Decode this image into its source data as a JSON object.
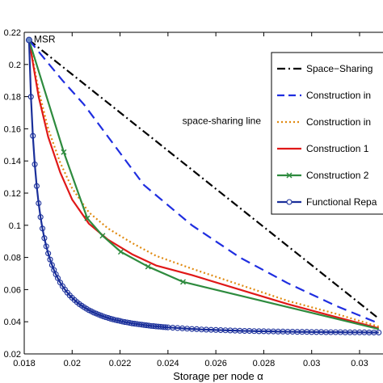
{
  "chart_data": {
    "type": "line",
    "xlabel": "Storage per node   α",
    "ylabel": "",
    "xlim": [
      0.018,
      0.0328
    ],
    "ylim": [
      0.02,
      0.22
    ],
    "xticks": [
      0.018,
      0.02,
      0.022,
      0.024,
      0.026,
      0.028,
      0.03,
      0.032
    ],
    "xtick_labels": [
      "0.018",
      "0.02",
      "0.022",
      "0.024",
      "0.026",
      "0.028",
      "0.03",
      "0.03"
    ],
    "yticks": [
      0.02,
      0.04,
      0.06,
      0.08,
      0.1,
      0.12,
      0.14,
      0.16,
      0.18,
      0.2,
      0.22
    ],
    "ytick_labels": [
      "0.02",
      "0.04",
      "0.06",
      "0.08",
      "0.1",
      "0.12",
      "0.14",
      "0.16",
      "0.18",
      "0.2",
      "0.22"
    ],
    "grid": false,
    "legend_position": "top-right",
    "annotations": [
      {
        "text": "MSR",
        "x": 0.0184,
        "y": 0.2152
      },
      {
        "text": "space-sharing line",
        "x": 0.0246,
        "y": 0.163
      }
    ],
    "series": [
      {
        "name": "Space−Sharing",
        "color": "#000000",
        "style": "dashdot",
        "marker": "none",
        "x": [
          0.0182,
          0.0328
        ],
        "y": [
          0.2152,
          0.042
        ]
      },
      {
        "name": "Construction in",
        "color": "#1f2ee0",
        "style": "dashed",
        "marker": "none",
        "x": [
          0.0182,
          0.0196,
          0.0205,
          0.0215,
          0.022,
          0.023,
          0.025,
          0.027,
          0.029,
          0.031,
          0.0328
        ],
        "y": [
          0.2152,
          0.19,
          0.175,
          0.155,
          0.145,
          0.125,
          0.1,
          0.08,
          0.064,
          0.05,
          0.039
        ]
      },
      {
        "name": "Construction in",
        "color": "#e08a10",
        "style": "dotted",
        "marker": "none",
        "x": [
          0.0182,
          0.0186,
          0.019,
          0.0195,
          0.02,
          0.0207,
          0.0215,
          0.0225,
          0.0235,
          0.025,
          0.027,
          0.029,
          0.031,
          0.0328
        ],
        "y": [
          0.2152,
          0.184,
          0.16,
          0.139,
          0.123,
          0.108,
          0.098,
          0.089,
          0.081,
          0.073,
          0.063,
          0.053,
          0.045,
          0.037
        ]
      },
      {
        "name": "Construction 1",
        "color": "#e01818",
        "style": "solid",
        "marker": "none",
        "x": [
          0.0182,
          0.0186,
          0.019,
          0.0195,
          0.02,
          0.0207,
          0.0215,
          0.0225,
          0.0235,
          0.025,
          0.027,
          0.029,
          0.031,
          0.0328
        ],
        "y": [
          0.2152,
          0.18,
          0.155,
          0.133,
          0.116,
          0.101,
          0.091,
          0.082,
          0.075,
          0.069,
          0.06,
          0.051,
          0.043,
          0.036
        ]
      },
      {
        "name": "Construction 2",
        "color": "#2e8b3e",
        "style": "solid",
        "marker": "x",
        "x": [
          0.0182,
          0.01965,
          0.02063,
          0.02127,
          0.02203,
          0.02317,
          0.02463,
          0.0328
        ],
        "y": [
          0.2152,
          0.1455,
          0.1044,
          0.0935,
          0.0835,
          0.0743,
          0.0648,
          0.0355
        ]
      },
      {
        "name": "Functional Repa",
        "color": "#1a2f9a",
        "style": "solid",
        "marker": "circle",
        "x": [
          0.0182,
          0.01828,
          0.01836,
          0.01844,
          0.01852,
          0.0186,
          0.01868,
          0.01876,
          0.01884,
          0.01892,
          0.019,
          0.01908,
          0.01916,
          0.01924,
          0.01932,
          0.0194,
          0.0195,
          0.0196,
          0.0197,
          0.0198,
          0.0199,
          0.02,
          0.0201,
          0.0202,
          0.0203,
          0.0204,
          0.0205,
          0.0206,
          0.0207,
          0.0208,
          0.0209,
          0.021,
          0.0211,
          0.0212,
          0.0213,
          0.0214,
          0.0215,
          0.0216,
          0.0217,
          0.0218,
          0.0219,
          0.022,
          0.0221,
          0.0222,
          0.0223,
          0.0224,
          0.0225,
          0.0226,
          0.0227,
          0.0228,
          0.0229,
          0.023,
          0.0231,
          0.0232,
          0.0233,
          0.0234,
          0.0235,
          0.0236,
          0.0237,
          0.0238,
          0.0239,
          0.024,
          0.0242,
          0.0244,
          0.0246,
          0.0248,
          0.025,
          0.0252,
          0.0254,
          0.0256,
          0.0258,
          0.026,
          0.0262,
          0.0264,
          0.0266,
          0.0268,
          0.027,
          0.0272,
          0.0274,
          0.0276,
          0.0278,
          0.028,
          0.0282,
          0.0284,
          0.0286,
          0.0288,
          0.029,
          0.0292,
          0.0294,
          0.0296,
          0.0298,
          0.03,
          0.0302,
          0.0304,
          0.0306,
          0.0308,
          0.031,
          0.0312,
          0.0314,
          0.0316,
          0.0318,
          0.032,
          0.0322,
          0.0324,
          0.0326,
          0.0328
        ],
        "y": [
          0.2152,
          0.1799,
          0.1556,
          0.1379,
          0.1244,
          0.1137,
          0.1051,
          0.098,
          0.092,
          0.0869,
          0.0825,
          0.0787,
          0.0753,
          0.0722,
          0.0695,
          0.0671,
          0.0644,
          0.0621,
          0.06,
          0.0581,
          0.0564,
          0.0549,
          0.0535,
          0.0522,
          0.051,
          0.05,
          0.049,
          0.0481,
          0.0472,
          0.0465,
          0.0457,
          0.0451,
          0.0445,
          0.0439,
          0.0433,
          0.0428,
          0.0424,
          0.0419,
          0.0415,
          0.0411,
          0.0408,
          0.0405,
          0.0401,
          0.0398,
          0.0396,
          0.0393,
          0.039,
          0.0388,
          0.0386,
          0.0384,
          0.0382,
          0.038,
          0.0378,
          0.0376,
          0.0374,
          0.0373,
          0.0371,
          0.037,
          0.0369,
          0.0367,
          0.0366,
          0.0365,
          0.0363,
          0.0361,
          0.0359,
          0.0357,
          0.0355,
          0.0354,
          0.0352,
          0.0351,
          0.035,
          0.0349,
          0.0348,
          0.0347,
          0.0346,
          0.0345,
          0.0344,
          0.0343,
          0.0343,
          0.0342,
          0.0341,
          0.0341,
          0.034,
          0.034,
          0.0339,
          0.0339,
          0.0338,
          0.0338,
          0.0337,
          0.0337,
          0.0337,
          0.0336,
          0.0336,
          0.0336,
          0.0335,
          0.0335,
          0.0335,
          0.0335,
          0.0334,
          0.0334,
          0.0334,
          0.0334,
          0.0334,
          0.0333,
          0.0333,
          0.0333
        ]
      }
    ]
  }
}
